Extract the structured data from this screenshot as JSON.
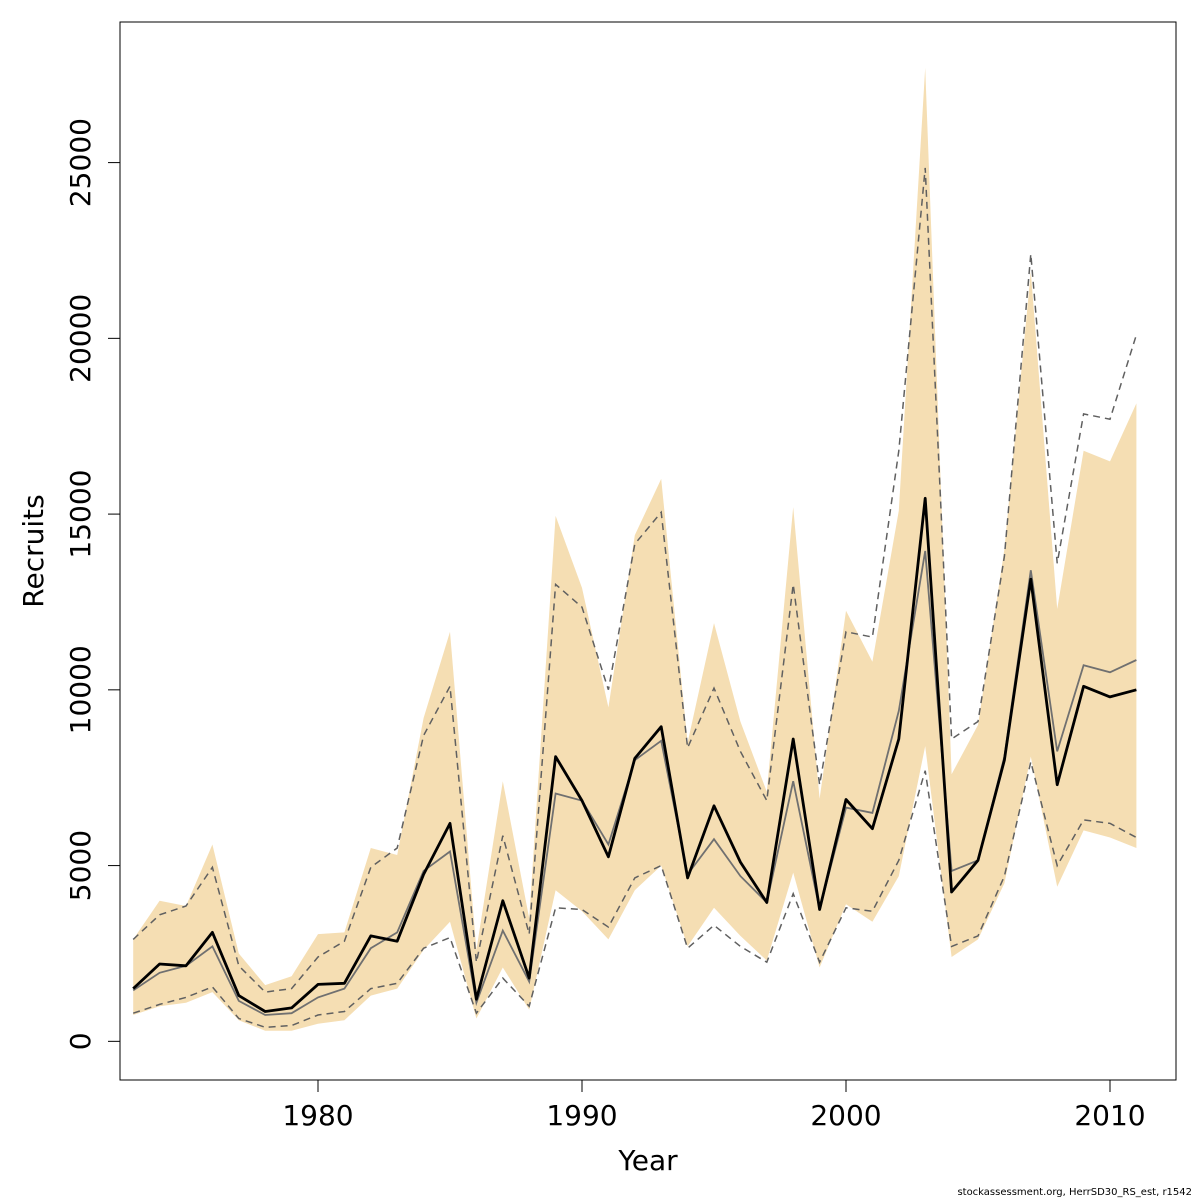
{
  "chart_data": {
    "type": "area",
    "xlabel": "Year",
    "ylabel": "Recruits",
    "xlim": [
      1972.5,
      2012.5
    ],
    "ylim": [
      -1100,
      29000
    ],
    "x_ticks": [
      1980,
      1990,
      2000,
      2010
    ],
    "y_ticks": [
      0,
      5000,
      10000,
      15000,
      20000,
      25000
    ],
    "grid": false,
    "colors": {
      "band": "#F5DEB3",
      "estimate": "#000000",
      "alt_estimate": "#707070",
      "alt_interval": "#606060"
    },
    "x": [
      1973,
      1974,
      1975,
      1976,
      1977,
      1978,
      1979,
      1980,
      1981,
      1982,
      1983,
      1984,
      1985,
      1986,
      1987,
      1988,
      1989,
      1990,
      1991,
      1992,
      1993,
      1994,
      1995,
      1996,
      1997,
      1998,
      1999,
      2000,
      2001,
      2002,
      2003,
      2004,
      2005,
      2006,
      2007,
      2008,
      2009,
      2010,
      2011
    ],
    "series": [
      {
        "role": "band_upper",
        "values": [
          2900,
          4000,
          3850,
          5600,
          2500,
          1600,
          1850,
          3050,
          3100,
          5500,
          5300,
          9200,
          11650,
          2600,
          7400,
          3500,
          14950,
          12900,
          9500,
          14400,
          16000,
          8500,
          11900,
          9100,
          7100,
          15200,
          6900,
          12250,
          10800,
          15100,
          27700,
          7600,
          9000,
          14000,
          21900,
          12300,
          16800,
          16500,
          18150
        ]
      },
      {
        "role": "band_lower",
        "values": [
          750,
          1000,
          1100,
          1400,
          600,
          300,
          300,
          500,
          600,
          1300,
          1500,
          2600,
          3400,
          650,
          2100,
          900,
          4300,
          3700,
          2900,
          4300,
          5000,
          2700,
          3800,
          3000,
          2300,
          4800,
          2100,
          3900,
          3400,
          4700,
          8400,
          2400,
          2900,
          4500,
          8100,
          4400,
          6000,
          5800,
          5500
        ]
      },
      {
        "role": "estimate",
        "values": [
          1500,
          2200,
          2150,
          3100,
          1300,
          850,
          950,
          1620,
          1650,
          3000,
          2850,
          4750,
          6200,
          1200,
          4000,
          1800,
          8100,
          6850,
          5250,
          8050,
          8950,
          4650,
          6700,
          5100,
          3950,
          8600,
          3750,
          6880,
          6050,
          8600,
          15450,
          4250,
          5150,
          8000,
          13150,
          7300,
          10100,
          9800,
          10000
        ]
      },
      {
        "role": "alt_estimate",
        "values": [
          1450,
          1950,
          2150,
          2700,
          1150,
          750,
          800,
          1250,
          1500,
          2650,
          3100,
          4850,
          5400,
          1100,
          3150,
          1700,
          7050,
          6850,
          5600,
          8000,
          8550,
          4750,
          5750,
          4700,
          3950,
          7400,
          3750,
          6650,
          6500,
          9400,
          13950,
          4850,
          5150,
          8100,
          13400,
          8250,
          10700,
          10500,
          10850
        ]
      },
      {
        "role": "alt_upper",
        "values": [
          2900,
          3600,
          3850,
          4950,
          2150,
          1400,
          1500,
          2400,
          2850,
          4950,
          5500,
          8700,
          10100,
          2250,
          5850,
          3050,
          13000,
          12350,
          10000,
          14150,
          15050,
          8350,
          10050,
          8250,
          6850,
          13000,
          7300,
          11650,
          11500,
          16800,
          24850,
          8600,
          9100,
          13800,
          22400,
          13600,
          17850,
          17700,
          20100
        ]
      },
      {
        "role": "alt_lower",
        "values": [
          800,
          1050,
          1250,
          1550,
          650,
          400,
          450,
          750,
          850,
          1500,
          1650,
          2650,
          2950,
          800,
          1800,
          1000,
          3800,
          3750,
          3250,
          4650,
          5000,
          2650,
          3300,
          2700,
          2250,
          4200,
          2250,
          3800,
          3700,
          5150,
          7700,
          2700,
          3000,
          4700,
          7950,
          5000,
          6300,
          6200,
          5800
        ]
      }
    ]
  },
  "footer": {
    "credit": "stockassessment.org, HerrSD30_RS_est, r1542"
  }
}
